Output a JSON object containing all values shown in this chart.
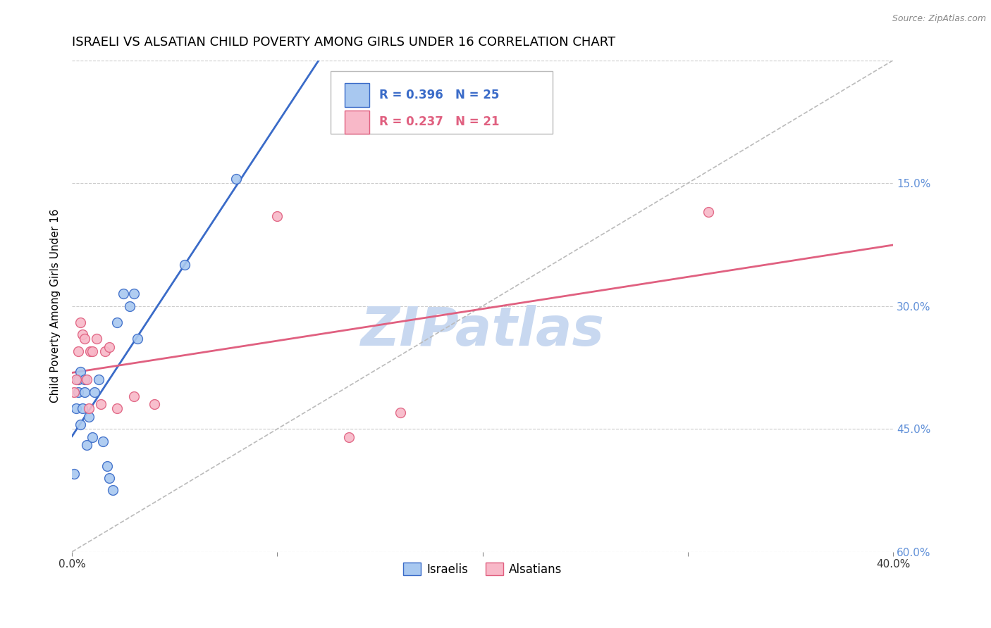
{
  "title": "ISRAELI VS ALSATIAN CHILD POVERTY AMONG GIRLS UNDER 16 CORRELATION CHART",
  "source": "Source: ZipAtlas.com",
  "ylabel": "Child Poverty Among Girls Under 16",
  "watermark": "ZIPatlas",
  "xlim": [
    0.0,
    0.4
  ],
  "ylim": [
    0.0,
    0.6
  ],
  "xticks": [
    0.0,
    0.1,
    0.2,
    0.3,
    0.4
  ],
  "yticks": [
    0.0,
    0.15,
    0.3,
    0.45,
    0.6
  ],
  "xtick_labels": [
    "0.0%",
    "",
    "",
    "",
    "40.0%"
  ],
  "right_ytick_labels": [
    "60.0%",
    "45.0%",
    "30.0%",
    "15.0%",
    ""
  ],
  "israelis_x": [
    0.001,
    0.002,
    0.003,
    0.003,
    0.004,
    0.004,
    0.005,
    0.006,
    0.006,
    0.007,
    0.008,
    0.01,
    0.011,
    0.013,
    0.015,
    0.017,
    0.018,
    0.02,
    0.022,
    0.025,
    0.028,
    0.03,
    0.032,
    0.055,
    0.08
  ],
  "israelis_y": [
    0.095,
    0.175,
    0.195,
    0.21,
    0.155,
    0.22,
    0.175,
    0.195,
    0.21,
    0.13,
    0.165,
    0.14,
    0.195,
    0.21,
    0.135,
    0.105,
    0.09,
    0.075,
    0.28,
    0.315,
    0.3,
    0.315,
    0.26,
    0.35,
    0.455
  ],
  "alsatians_x": [
    0.001,
    0.002,
    0.003,
    0.004,
    0.005,
    0.006,
    0.007,
    0.008,
    0.009,
    0.01,
    0.012,
    0.014,
    0.016,
    0.018,
    0.022,
    0.03,
    0.04,
    0.1,
    0.135,
    0.16,
    0.31
  ],
  "alsatians_y": [
    0.195,
    0.21,
    0.245,
    0.28,
    0.265,
    0.26,
    0.21,
    0.175,
    0.245,
    0.245,
    0.26,
    0.18,
    0.245,
    0.25,
    0.175,
    0.19,
    0.18,
    0.41,
    0.14,
    0.17,
    0.415
  ],
  "R_israelis": 0.396,
  "N_israelis": 25,
  "R_alsatians": 0.237,
  "N_alsatians": 21,
  "israelis_color": "#A8C8F0",
  "alsatians_color": "#F8B8C8",
  "israelis_line_color": "#3A6BC8",
  "alsatians_line_color": "#E06080",
  "diag_line_color": "#BBBBBB",
  "background_color": "#FFFFFF",
  "grid_color": "#CCCCCC",
  "title_color": "#000000",
  "tick_color_right": "#6090D8",
  "watermark_color": "#C8D8F0",
  "marker_size": 100,
  "line_width": 2.0,
  "title_fontsize": 13,
  "label_fontsize": 11,
  "tick_fontsize": 11,
  "legend_fontsize": 12,
  "source_fontsize": 9
}
